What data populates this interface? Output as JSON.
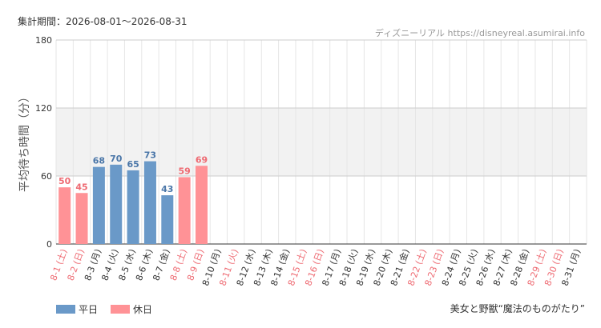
{
  "header": {
    "period": "集計期間：2026-08-01〜2026-08-31",
    "source": "ディズニーリアル https://disneyreal.asumirai.info"
  },
  "footer": {
    "attraction": "美女と野獣“魔法のものがたり”"
  },
  "colors": {
    "weekday": "#6a99c8",
    "holiday": "#ff9296",
    "weekday_text": "#4a76a8",
    "holiday_text": "#ee6a72",
    "weekday_label": "#333333",
    "holiday_label": "#ee6a72",
    "band": "#f2f2f2",
    "grid": "#e6e6e6"
  },
  "chart_data": {
    "type": "bar",
    "ylabel": "平均待ち時間（分）",
    "ylim": [
      0,
      180
    ],
    "yticks": [
      0,
      60,
      120,
      180
    ],
    "grid": true,
    "legend_position": "bottom-left",
    "legend": [
      {
        "name": "平日",
        "key": "weekday"
      },
      {
        "name": "休日",
        "key": "holiday"
      }
    ],
    "categories": [
      "8-1 (土)",
      "8-2 (日)",
      "8-3 (月)",
      "8-4 (火)",
      "8-5 (水)",
      "8-6 (木)",
      "8-7 (金)",
      "8-8 (土)",
      "8-9 (日)",
      "8-10 (月)",
      "8-11 (火)",
      "8-12 (水)",
      "8-13 (木)",
      "8-14 (金)",
      "8-15 (土)",
      "8-16 (日)",
      "8-17 (月)",
      "8-18 (火)",
      "8-19 (水)",
      "8-20 (木)",
      "8-21 (金)",
      "8-22 (土)",
      "8-23 (日)",
      "8-24 (月)",
      "8-25 (火)",
      "8-26 (水)",
      "8-27 (木)",
      "8-28 (金)",
      "8-29 (土)",
      "8-30 (日)",
      "8-31 (月)"
    ],
    "day_type": [
      "holiday",
      "holiday",
      "weekday",
      "weekday",
      "weekday",
      "weekday",
      "weekday",
      "holiday",
      "holiday",
      "weekday",
      "holiday",
      "weekday",
      "weekday",
      "weekday",
      "holiday",
      "holiday",
      "weekday",
      "weekday",
      "weekday",
      "weekday",
      "weekday",
      "holiday",
      "holiday",
      "weekday",
      "weekday",
      "weekday",
      "weekday",
      "weekday",
      "holiday",
      "holiday",
      "weekday"
    ],
    "values": [
      50,
      45,
      68,
      70,
      65,
      73,
      43,
      59,
      69,
      null,
      null,
      null,
      null,
      null,
      null,
      null,
      null,
      null,
      null,
      null,
      null,
      null,
      null,
      null,
      null,
      null,
      null,
      null,
      null,
      null,
      null
    ]
  }
}
